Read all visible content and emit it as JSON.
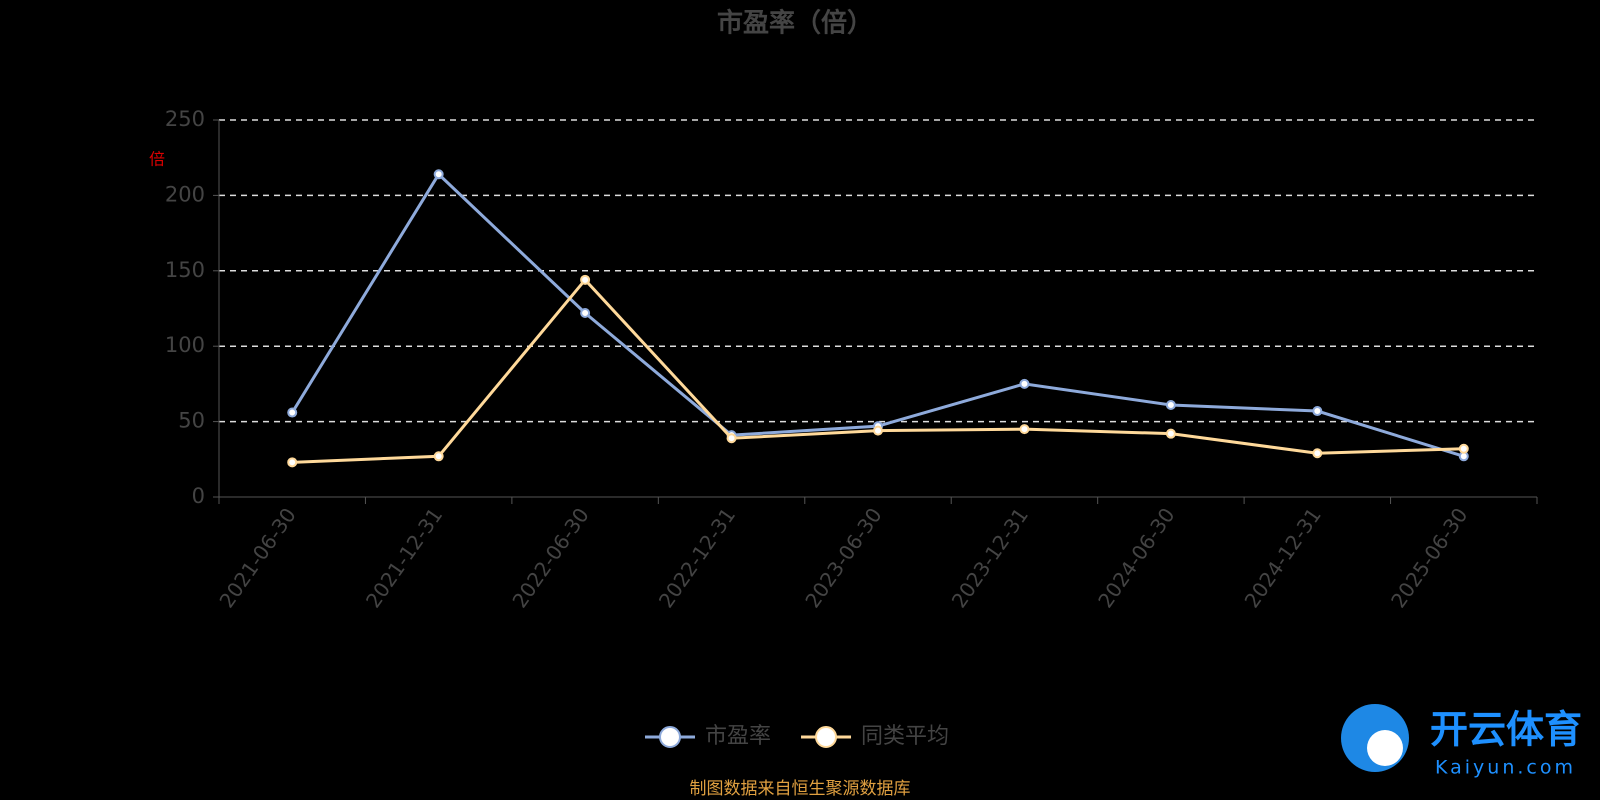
{
  "chart_data": {
    "type": "line",
    "title": "市盈率（倍）",
    "y_label": "倍",
    "categories": [
      "2021-06-30",
      "2021-12-31",
      "2022-06-30",
      "2022-12-31",
      "2023-06-30",
      "2023-12-31",
      "2024-06-30",
      "2024-12-31",
      "2025-06-30"
    ],
    "series": [
      {
        "name": "市盈率",
        "color": "#8eaadb",
        "values": [
          56,
          214,
          122,
          41,
          47,
          75,
          61,
          57,
          27
        ]
      },
      {
        "name": "同类平均",
        "color": "#ffd99a",
        "values": [
          23,
          27,
          144,
          39,
          44,
          45,
          42,
          29,
          32
        ]
      }
    ],
    "ylim": [
      0,
      250
    ],
    "yticks": [
      0,
      50,
      100,
      150,
      200,
      250
    ],
    "grid": true,
    "legend": "bottom",
    "source": "制图数据来自恒生聚源数据库",
    "watermark": {
      "brand": "开云体育",
      "url": "Kaiyun.com"
    }
  }
}
